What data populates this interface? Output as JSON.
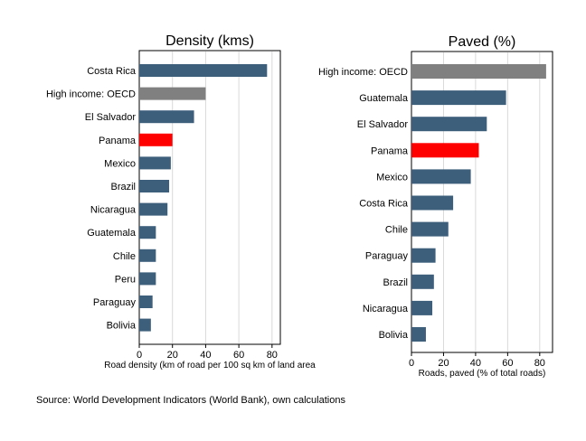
{
  "source_note": "Source: World Development Indicators (World Bank), own calculations",
  "colors": {
    "default_bar": "#3d5f7c",
    "oecd_bar": "#808080",
    "highlight_bar": "#ff0000",
    "grid": "#d9d9d9"
  },
  "chart_data": [
    {
      "type": "bar",
      "orientation": "horizontal",
      "title": "Density (kms)",
      "xlabel": "Road density (km of road per 100 sq km of land area",
      "xlim": [
        0,
        85
      ],
      "xticks": [
        0,
        20,
        40,
        60,
        80
      ],
      "grid": true,
      "categories": [
        "Costa Rica",
        "High income: OECD",
        "El Salvador",
        "Panama",
        "Mexico",
        "Brazil",
        "Nicaragua",
        "Guatemala",
        "Chile",
        "Peru",
        "Paraguay",
        "Bolivia"
      ],
      "values": [
        77,
        40,
        33,
        20,
        19,
        18,
        17,
        10,
        10,
        10,
        8,
        7
      ],
      "bar_colors": [
        "#3d5f7c",
        "#808080",
        "#3d5f7c",
        "#ff0000",
        "#3d5f7c",
        "#3d5f7c",
        "#3d5f7c",
        "#3d5f7c",
        "#3d5f7c",
        "#3d5f7c",
        "#3d5f7c",
        "#3d5f7c"
      ]
    },
    {
      "type": "bar",
      "orientation": "horizontal",
      "title": "Paved (%)",
      "xlabel": "Roads, paved (% of total roads)",
      "xlim": [
        0,
        88
      ],
      "xticks": [
        0,
        20,
        40,
        60,
        80
      ],
      "grid": true,
      "categories": [
        "High income: OECD",
        "Guatemala",
        "El Salvador",
        "Panama",
        "Mexico",
        "Costa Rica",
        "Chile",
        "Paraguay",
        "Brazil",
        "Nicaragua",
        "Bolivia"
      ],
      "values": [
        84,
        59,
        47,
        42,
        37,
        26,
        23,
        15,
        14,
        13,
        9
      ],
      "bar_colors": [
        "#808080",
        "#3d5f7c",
        "#3d5f7c",
        "#ff0000",
        "#3d5f7c",
        "#3d5f7c",
        "#3d5f7c",
        "#3d5f7c",
        "#3d5f7c",
        "#3d5f7c",
        "#3d5f7c"
      ]
    }
  ]
}
